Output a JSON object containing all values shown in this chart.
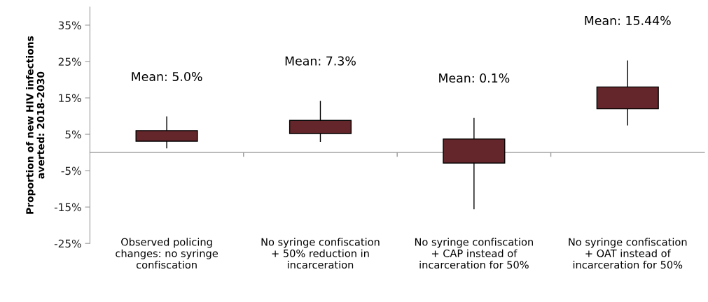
{
  "chart_data": {
    "type": "candlestick",
    "ylabel": "Proportion of new HIV infections\naverted: 2018-2030",
    "categories": [
      "Observed policing\nchanges: no syringe\nconfiscation",
      "No syringe confiscation\n+ 50% reduction in\nincarceration",
      "No syringe confiscation\n+ CAP instead of\nincarceration for 50%",
      "No syringe confiscation\n+ OAT instead of\nincarceration for 50%"
    ],
    "ohlc": [
      [
        3.1,
        9.9,
        1.1,
        6.0
      ],
      [
        5.2,
        14.2,
        2.9,
        8.8
      ],
      [
        -2.9,
        9.5,
        -15.6,
        3.7
      ],
      [
        12.0,
        25.3,
        7.4,
        18.0
      ]
    ],
    "color": "#64262a",
    "ylim": [
      -25,
      40
    ],
    "yticks": [
      {
        "value": -25,
        "label": "-25%"
      },
      {
        "value": -15,
        "label": "-15%"
      },
      {
        "value": -5,
        "label": "-5%"
      },
      {
        "value": 5,
        "label": "5%"
      },
      {
        "value": 15,
        "label": "15%"
      },
      {
        "value": 25,
        "label": "25%"
      },
      {
        "value": 35,
        "label": "35%"
      }
    ],
    "annotations": [
      "Mean: 5.0%",
      "Mean: 7.3%",
      "Mean: 0.1%",
      "Mean: 15.44%"
    ],
    "grid": false
  }
}
